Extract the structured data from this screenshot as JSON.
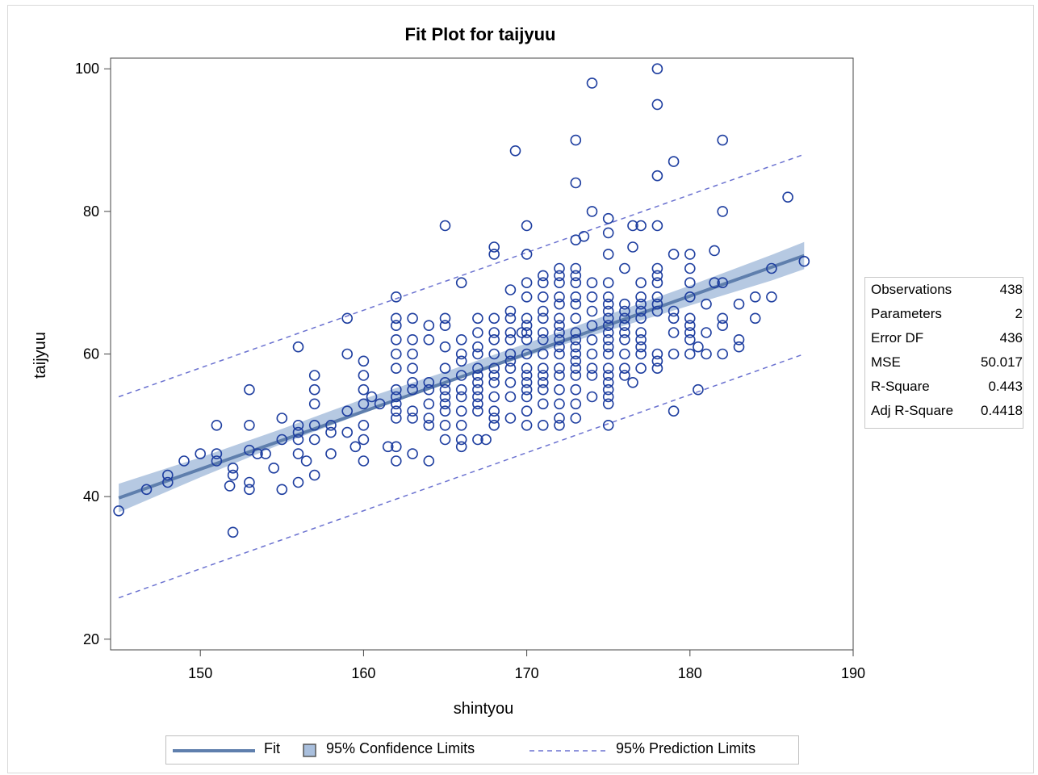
{
  "chart_data": {
    "type": "scatter",
    "title": "Fit Plot for taijyuu",
    "xlabel": "shintyou",
    "ylabel": "taijyuu",
    "xlim": [
      144.5,
      190
    ],
    "ylim": [
      18.5,
      101.5
    ],
    "xticks": [
      150,
      160,
      170,
      180,
      190
    ],
    "yticks": [
      20,
      40,
      60,
      80,
      100
    ],
    "fit": {
      "x": [
        145,
        187
      ],
      "y": [
        39.8,
        73.8
      ]
    },
    "confidence_limits": {
      "x": [
        145,
        150,
        155,
        160,
        165,
        170,
        175,
        180,
        185,
        187
      ],
      "lower": [
        37.8,
        42.7,
        47.4,
        51.7,
        55.9,
        59.7,
        63.3,
        66.8,
        70.3,
        71.9
      ],
      "upper": [
        41.8,
        45.5,
        49.5,
        53.7,
        57.5,
        61.5,
        65.5,
        69.6,
        73.9,
        75.7
      ]
    },
    "prediction_limits": {
      "x": [
        145,
        187
      ],
      "lower": [
        25.8,
        60.0
      ],
      "upper": [
        54.0,
        88.0
      ]
    },
    "points": [
      [
        145,
        38
      ],
      [
        146.7,
        41
      ],
      [
        148,
        42
      ],
      [
        148,
        43
      ],
      [
        149,
        45
      ],
      [
        150,
        46
      ],
      [
        151,
        45
      ],
      [
        151,
        46
      ],
      [
        151,
        50
      ],
      [
        152,
        35
      ],
      [
        151.8,
        41.5
      ],
      [
        152,
        43
      ],
      [
        152,
        44
      ],
      [
        153,
        41
      ],
      [
        153,
        42
      ],
      [
        153,
        46.5
      ],
      [
        153,
        50
      ],
      [
        153,
        55
      ],
      [
        153.5,
        46
      ],
      [
        154,
        46
      ],
      [
        154.5,
        44
      ],
      [
        155,
        41
      ],
      [
        155,
        48
      ],
      [
        155,
        51
      ],
      [
        156,
        42
      ],
      [
        156,
        46
      ],
      [
        156,
        48
      ],
      [
        156,
        49
      ],
      [
        156,
        50
      ],
      [
        156,
        61
      ],
      [
        156.5,
        45
      ],
      [
        157,
        43
      ],
      [
        157,
        48
      ],
      [
        157,
        50
      ],
      [
        157,
        53
      ],
      [
        157,
        55
      ],
      [
        157,
        57
      ],
      [
        158,
        46
      ],
      [
        158,
        49
      ],
      [
        158,
        50
      ],
      [
        159,
        49
      ],
      [
        159,
        52
      ],
      [
        159,
        60
      ],
      [
        159,
        65
      ],
      [
        159.5,
        47
      ],
      [
        160,
        45
      ],
      [
        160,
        48
      ],
      [
        160,
        50
      ],
      [
        160,
        53
      ],
      [
        160,
        55
      ],
      [
        160,
        57
      ],
      [
        160,
        59
      ],
      [
        160.5,
        54
      ],
      [
        161,
        53
      ],
      [
        161.5,
        47
      ],
      [
        162,
        45
      ],
      [
        162,
        47
      ],
      [
        162,
        51
      ],
      [
        162,
        52
      ],
      [
        162,
        53
      ],
      [
        162,
        54
      ],
      [
        162,
        55
      ],
      [
        162,
        58
      ],
      [
        162,
        60
      ],
      [
        162,
        62
      ],
      [
        162,
        64
      ],
      [
        162,
        65
      ],
      [
        162,
        68
      ],
      [
        163,
        46
      ],
      [
        163,
        51
      ],
      [
        163,
        52
      ],
      [
        163,
        55
      ],
      [
        163,
        56
      ],
      [
        163,
        58
      ],
      [
        163,
        60
      ],
      [
        163,
        62
      ],
      [
        163,
        65
      ],
      [
        164,
        45
      ],
      [
        164,
        50
      ],
      [
        164,
        51
      ],
      [
        164,
        53
      ],
      [
        164,
        55
      ],
      [
        164,
        56
      ],
      [
        164,
        62
      ],
      [
        164,
        64
      ],
      [
        165,
        48
      ],
      [
        165,
        50
      ],
      [
        165,
        52
      ],
      [
        165,
        53
      ],
      [
        165,
        54
      ],
      [
        165,
        55
      ],
      [
        165,
        56
      ],
      [
        165,
        58
      ],
      [
        165,
        61
      ],
      [
        165,
        64
      ],
      [
        165,
        65
      ],
      [
        165,
        78
      ],
      [
        166,
        47
      ],
      [
        166,
        48
      ],
      [
        166,
        50
      ],
      [
        166,
        52
      ],
      [
        166,
        54
      ],
      [
        166,
        55
      ],
      [
        166,
        57
      ],
      [
        166,
        59
      ],
      [
        166,
        60
      ],
      [
        166,
        62
      ],
      [
        166,
        70
      ],
      [
        167,
        48
      ],
      [
        167,
        52
      ],
      [
        167,
        53
      ],
      [
        167,
        54
      ],
      [
        167,
        55
      ],
      [
        167,
        56
      ],
      [
        167,
        57
      ],
      [
        167,
        58
      ],
      [
        167,
        60
      ],
      [
        167,
        61
      ],
      [
        167,
        63
      ],
      [
        167,
        65
      ],
      [
        167.5,
        48
      ],
      [
        168,
        50
      ],
      [
        168,
        51
      ],
      [
        168,
        52
      ],
      [
        168,
        54
      ],
      [
        168,
        56
      ],
      [
        168,
        57
      ],
      [
        168,
        58
      ],
      [
        168,
        60
      ],
      [
        168,
        62
      ],
      [
        168,
        63
      ],
      [
        168,
        65
      ],
      [
        168,
        74
      ],
      [
        168,
        75
      ],
      [
        169,
        51
      ],
      [
        169,
        54
      ],
      [
        169,
        56
      ],
      [
        169,
        58
      ],
      [
        169,
        59
      ],
      [
        169,
        60
      ],
      [
        169,
        62
      ],
      [
        169,
        63
      ],
      [
        169,
        65
      ],
      [
        169,
        66
      ],
      [
        169,
        69
      ],
      [
        169.3,
        88.5
      ],
      [
        169.7,
        63
      ],
      [
        170,
        50
      ],
      [
        170,
        52
      ],
      [
        170,
        54
      ],
      [
        170,
        55
      ],
      [
        170,
        56
      ],
      [
        170,
        57
      ],
      [
        170,
        58
      ],
      [
        170,
        60
      ],
      [
        170,
        62
      ],
      [
        170,
        63
      ],
      [
        170,
        64
      ],
      [
        170,
        65
      ],
      [
        170,
        68
      ],
      [
        170,
        70
      ],
      [
        170,
        74
      ],
      [
        170,
        78
      ],
      [
        171,
        50
      ],
      [
        171,
        53
      ],
      [
        171,
        55
      ],
      [
        171,
        56
      ],
      [
        171,
        57
      ],
      [
        171,
        58
      ],
      [
        171,
        60
      ],
      [
        171,
        62
      ],
      [
        171,
        63
      ],
      [
        171,
        65
      ],
      [
        171,
        66
      ],
      [
        171,
        68
      ],
      [
        171,
        70
      ],
      [
        171,
        71
      ],
      [
        172,
        50
      ],
      [
        172,
        51
      ],
      [
        172,
        53
      ],
      [
        172,
        55
      ],
      [
        172,
        57
      ],
      [
        172,
        58
      ],
      [
        172,
        60
      ],
      [
        172,
        61
      ],
      [
        172,
        62
      ],
      [
        172,
        63
      ],
      [
        172,
        64
      ],
      [
        172,
        65
      ],
      [
        172,
        67
      ],
      [
        172,
        68
      ],
      [
        172,
        70
      ],
      [
        172,
        71
      ],
      [
        172,
        72
      ],
      [
        173,
        51
      ],
      [
        173,
        53
      ],
      [
        173,
        55
      ],
      [
        173,
        57
      ],
      [
        173,
        58
      ],
      [
        173,
        59
      ],
      [
        173,
        60
      ],
      [
        173,
        61
      ],
      [
        173,
        62
      ],
      [
        173,
        63
      ],
      [
        173,
        65
      ],
      [
        173,
        67
      ],
      [
        173,
        68
      ],
      [
        173,
        70
      ],
      [
        173,
        71
      ],
      [
        173,
        72
      ],
      [
        173,
        76
      ],
      [
        173,
        84
      ],
      [
        173,
        90
      ],
      [
        173.5,
        76.5
      ],
      [
        174,
        54
      ],
      [
        174,
        57
      ],
      [
        174,
        58
      ],
      [
        174,
        60
      ],
      [
        174,
        62
      ],
      [
        174,
        64
      ],
      [
        174,
        66
      ],
      [
        174,
        68
      ],
      [
        174,
        70
      ],
      [
        174,
        80
      ],
      [
        174,
        98
      ],
      [
        175,
        50
      ],
      [
        175,
        53
      ],
      [
        175,
        54
      ],
      [
        175,
        55
      ],
      [
        175,
        56
      ],
      [
        175,
        57
      ],
      [
        175,
        58
      ],
      [
        175,
        60
      ],
      [
        175,
        61
      ],
      [
        175,
        62
      ],
      [
        175,
        63
      ],
      [
        175,
        64
      ],
      [
        175,
        65
      ],
      [
        175,
        66
      ],
      [
        175,
        67
      ],
      [
        175,
        68
      ],
      [
        175,
        70
      ],
      [
        175,
        74
      ],
      [
        175,
        77
      ],
      [
        175,
        79
      ],
      [
        176,
        57
      ],
      [
        176,
        58
      ],
      [
        176,
        60
      ],
      [
        176,
        62
      ],
      [
        176,
        63
      ],
      [
        176,
        64
      ],
      [
        176,
        65
      ],
      [
        176,
        66
      ],
      [
        176,
        67
      ],
      [
        176,
        72
      ],
      [
        176.5,
        56
      ],
      [
        176.5,
        75
      ],
      [
        176.5,
        78
      ],
      [
        177,
        58
      ],
      [
        177,
        60
      ],
      [
        177,
        61
      ],
      [
        177,
        62
      ],
      [
        177,
        63
      ],
      [
        177,
        65
      ],
      [
        177,
        66
      ],
      [
        177,
        67
      ],
      [
        177,
        68
      ],
      [
        177,
        70
      ],
      [
        177,
        78
      ],
      [
        178,
        58
      ],
      [
        178,
        59
      ],
      [
        178,
        60
      ],
      [
        178,
        66
      ],
      [
        178,
        67
      ],
      [
        178,
        68
      ],
      [
        178,
        70
      ],
      [
        178,
        71
      ],
      [
        178,
        72
      ],
      [
        178,
        78
      ],
      [
        178,
        85
      ],
      [
        178,
        95
      ],
      [
        178,
        100
      ],
      [
        179,
        52
      ],
      [
        179,
        60
      ],
      [
        179,
        63
      ],
      [
        179,
        65
      ],
      [
        179,
        66
      ],
      [
        179,
        74
      ],
      [
        179,
        87
      ],
      [
        180,
        60
      ],
      [
        180,
        62
      ],
      [
        180,
        63
      ],
      [
        180,
        64
      ],
      [
        180,
        65
      ],
      [
        180,
        68
      ],
      [
        180,
        70
      ],
      [
        180,
        72
      ],
      [
        180,
        74
      ],
      [
        180.5,
        55
      ],
      [
        180.5,
        61
      ],
      [
        181,
        60
      ],
      [
        181,
        63
      ],
      [
        181,
        67
      ],
      [
        181.5,
        70
      ],
      [
        181.5,
        74.5
      ],
      [
        182,
        60
      ],
      [
        182,
        64
      ],
      [
        182,
        65
      ],
      [
        182,
        70
      ],
      [
        182,
        80
      ],
      [
        182,
        90
      ],
      [
        183,
        61
      ],
      [
        183,
        62
      ],
      [
        183,
        67
      ],
      [
        184,
        65
      ],
      [
        184,
        68
      ],
      [
        185,
        68
      ],
      [
        185,
        72
      ],
      [
        186,
        82
      ],
      [
        187,
        73
      ]
    ]
  },
  "stats_table": [
    {
      "label": "Observations",
      "value": "438"
    },
    {
      "label": "Parameters",
      "value": "2"
    },
    {
      "label": "Error DF",
      "value": "436"
    },
    {
      "label": "MSE",
      "value": "50.017"
    },
    {
      "label": "R-Square",
      "value": "0.443"
    },
    {
      "label": "Adj R-Square",
      "value": "0.4418"
    }
  ],
  "legend": {
    "fit_label": "Fit",
    "confidence_label": "95% Confidence Limits",
    "prediction_label": "95% Prediction Limits"
  },
  "colors": {
    "points": "#1f3fa0",
    "fit_line": "#5f7fad",
    "confidence_band": "#a9bfdd",
    "prediction_line": "#6b72d0",
    "axis": "#444444"
  }
}
